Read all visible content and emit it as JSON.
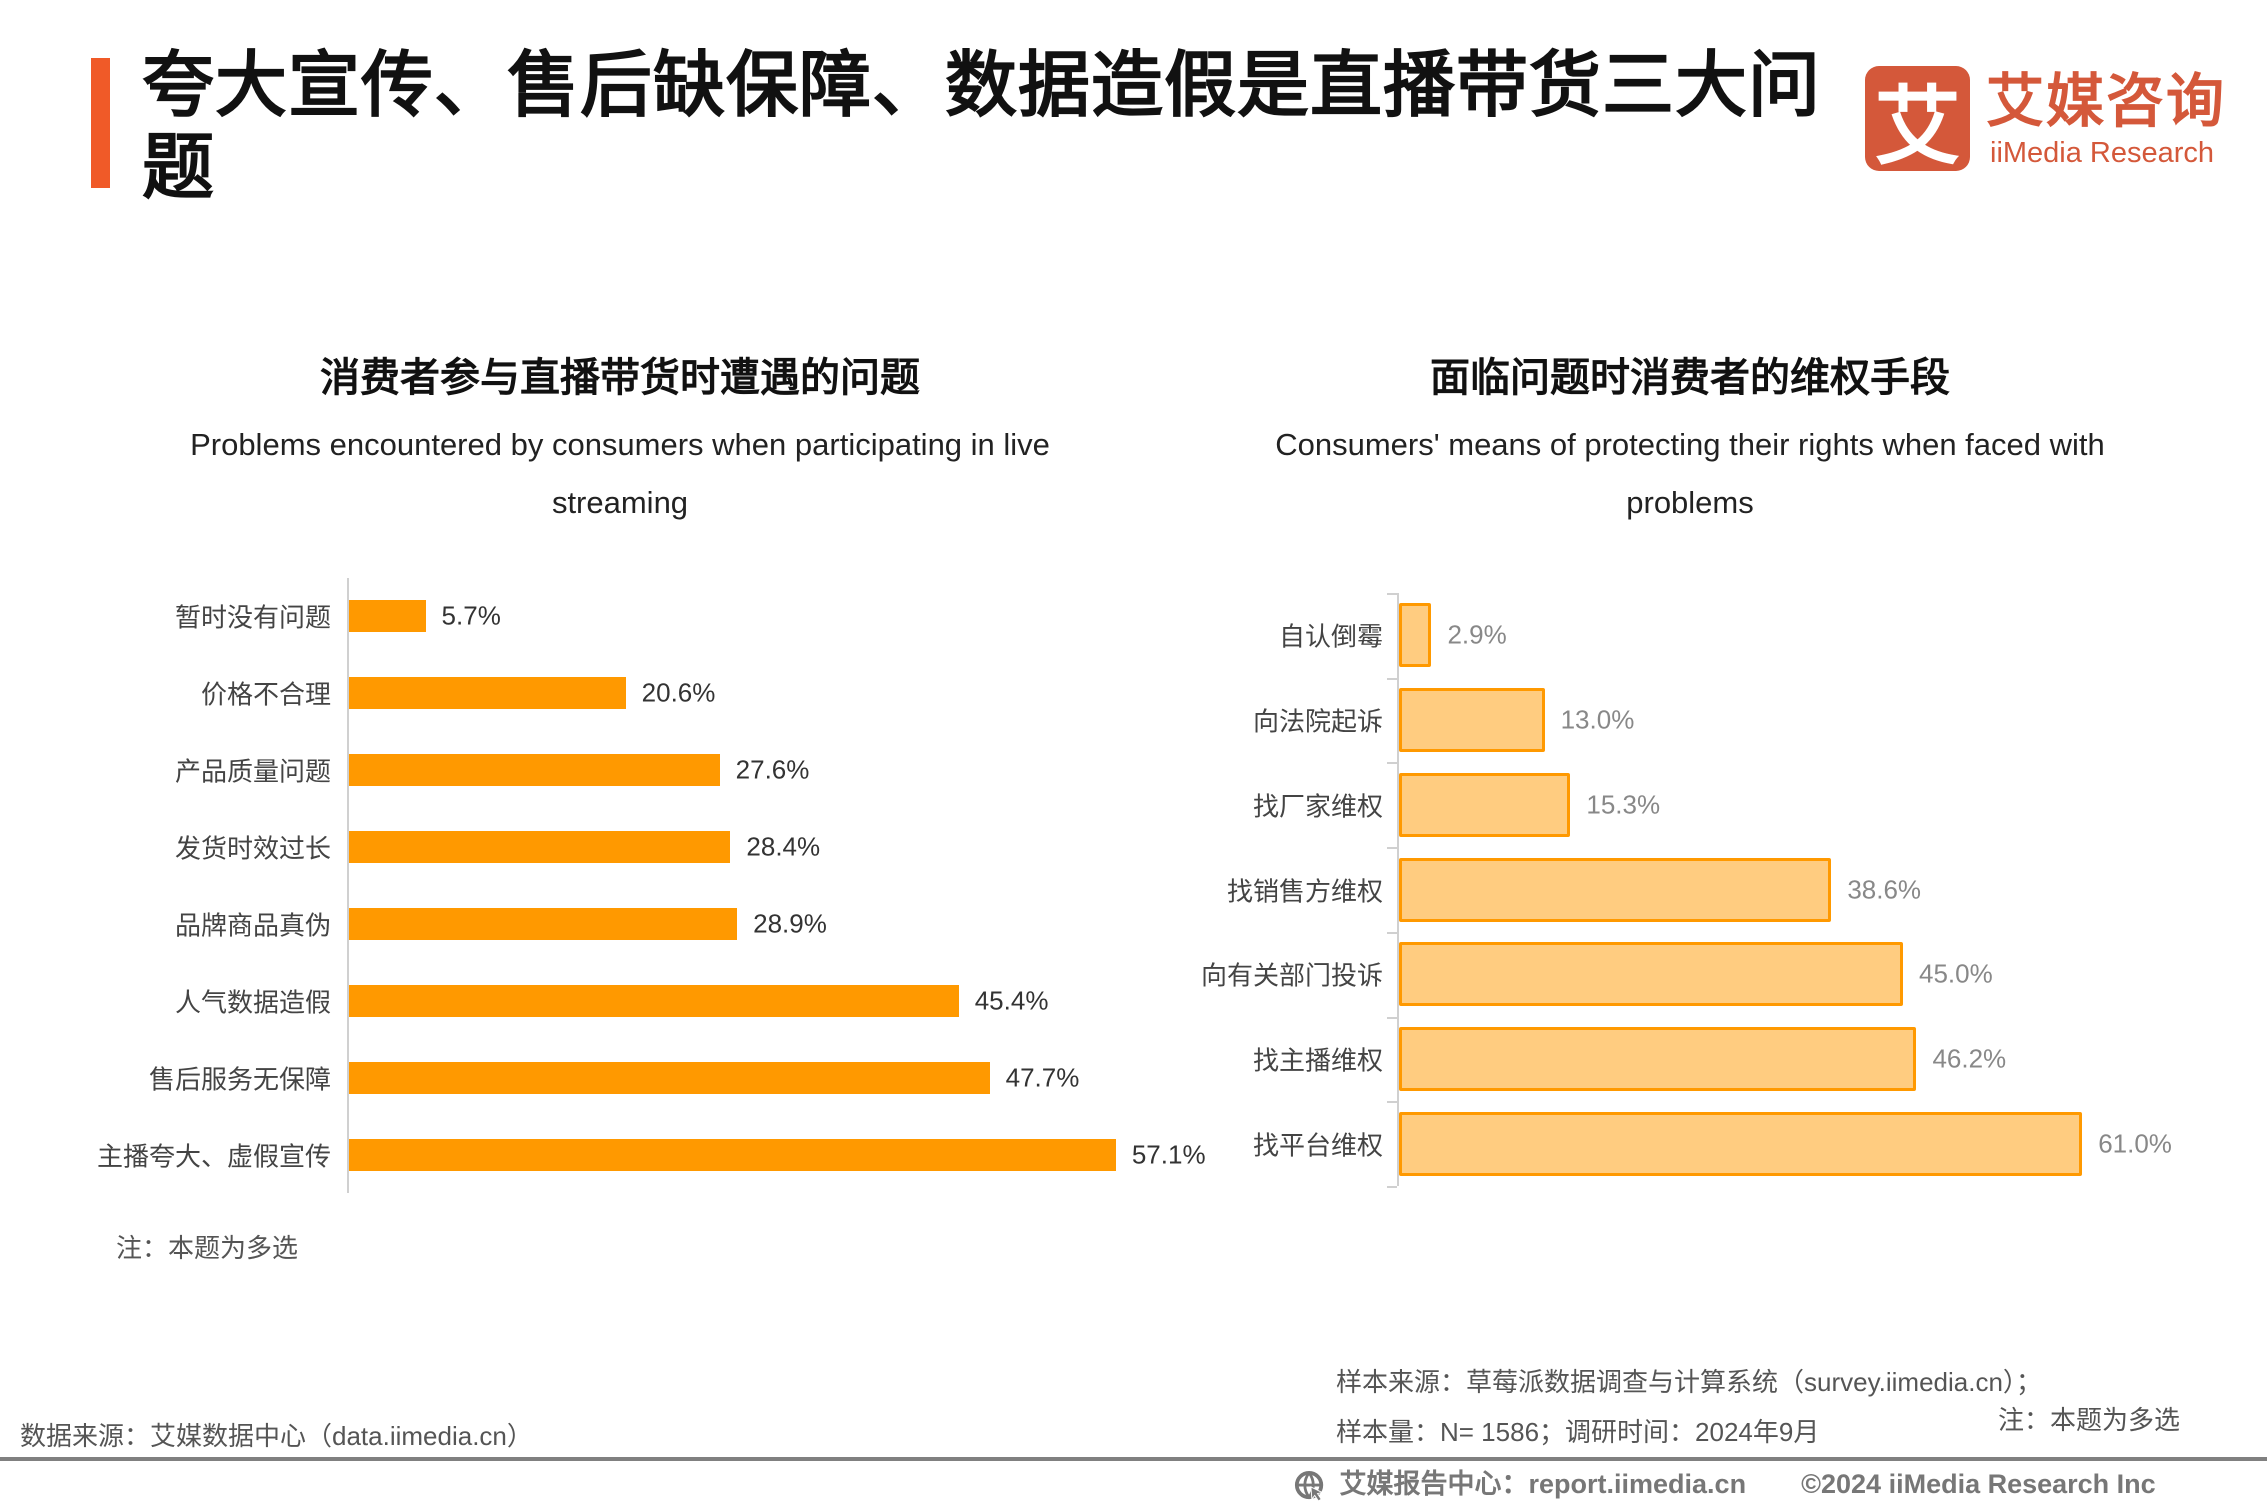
{
  "header": {
    "title": "夸大宣传、售后缺保障、数据造假是直播带货三大问题",
    "accent_color": "#F05A28"
  },
  "logo": {
    "mark": "艾",
    "name_cn": "艾媒咨询",
    "name_en": "iiMedia Research",
    "color": "#D4583A"
  },
  "chart_data": [
    {
      "type": "bar",
      "orientation": "horizontal",
      "title": "消费者参与直播带货时遭遇的问题",
      "subtitle": "Problems encountered by consumers when participating in live streaming",
      "categories": [
        "暂时没有问题",
        "价格不合理",
        "产品质量问题",
        "发货时效过长",
        "品牌商品真伪",
        "人气数据造假",
        "售后服务无保障",
        "主播夸大、虚假宣传"
      ],
      "values": [
        5.7,
        20.6,
        27.6,
        28.4,
        28.9,
        45.4,
        47.7,
        57.1
      ],
      "labels": [
        "5.7%",
        "20.6%",
        "27.6%",
        "28.4%",
        "28.9%",
        "45.4%",
        "47.7%",
        "57.1%"
      ],
      "unit": "%",
      "color": "#FF9900",
      "grid": false
    },
    {
      "type": "bar",
      "orientation": "horizontal",
      "title": "面临问题时消费者的维权手段",
      "subtitle": "Consumers' means of protecting their rights when faced with problems",
      "categories": [
        "自认倒霉",
        "向法院起诉",
        "找厂家维权",
        "找销售方维权",
        "向有关部门投诉",
        "找主播维权",
        "找平台维权"
      ],
      "values": [
        2.9,
        13.0,
        15.3,
        38.6,
        45.0,
        46.2,
        61.0
      ],
      "labels": [
        "2.9%",
        "13.0%",
        "15.3%",
        "38.6%",
        "45.0%",
        "46.2%",
        "61.0%"
      ],
      "unit": "%",
      "color": "#FFCC80",
      "border_color": "#FF9900",
      "grid": false
    }
  ],
  "notes": {
    "left_note": "注：本题为多选",
    "data_source": "数据来源：艾媒数据中心（data.iimedia.cn）",
    "sample_source": "样本来源：草莓派数据调查与计算系统（survey.iimedia.cn）；",
    "sample_size": "样本量：N= 1586；调研时间：2024年9月",
    "right_note": "注：本题为多选"
  },
  "footer": {
    "report_center": "艾媒报告中心：report.iimedia.cn",
    "copyright": "©2024  iiMedia Research  Inc",
    "icon": "globe-cursor-icon"
  }
}
